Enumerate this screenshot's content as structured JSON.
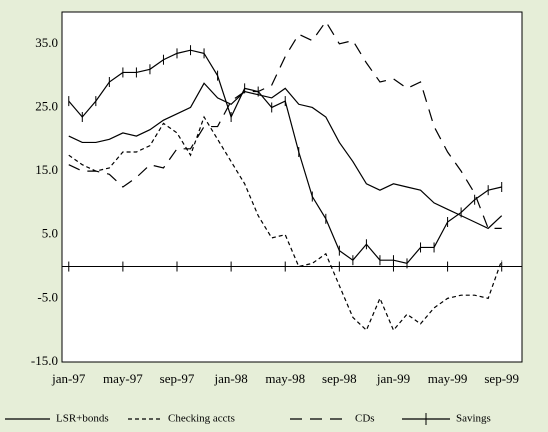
{
  "chart_data": {
    "type": "line",
    "x": [
      0,
      1,
      2,
      3,
      4,
      5,
      6,
      7,
      8,
      9,
      10,
      11,
      12,
      13,
      14,
      15,
      16,
      17,
      18,
      19,
      20,
      21,
      22,
      23,
      24,
      25,
      26,
      27,
      28,
      29,
      30,
      31,
      32
    ],
    "xlim": [
      -0.5,
      33.5
    ],
    "xticks": [
      {
        "value": 0,
        "label": "jan-97"
      },
      {
        "value": 4,
        "label": "may-97"
      },
      {
        "value": 8,
        "label": "sep-97"
      },
      {
        "value": 12,
        "label": "jan-98"
      },
      {
        "value": 16,
        "label": "may-98"
      },
      {
        "value": 20,
        "label": "sep-98"
      },
      {
        "value": 24,
        "label": "jan-99"
      },
      {
        "value": 28,
        "label": "may-99"
      },
      {
        "value": 32,
        "label": "sep-99"
      }
    ],
    "ylim": [
      -15,
      40
    ],
    "yticks": [
      {
        "value": 35,
        "label": "35.0"
      },
      {
        "value": 25,
        "label": "25.0"
      },
      {
        "value": 15,
        "label": "15.0"
      },
      {
        "value": 5,
        "label": "5.0"
      },
      {
        "value": -5,
        "label": "-5.0"
      },
      {
        "value": -15,
        "label": "-15.0"
      }
    ],
    "zero_line": true,
    "grid": false,
    "legend": "bottom",
    "series": [
      {
        "name": "LSR+bonds",
        "color": "#000000",
        "dash": "solid",
        "marker": "none",
        "values": [
          20.5,
          19.5,
          19.5,
          20,
          21,
          20.5,
          21.5,
          23,
          24,
          25,
          28.8,
          26.5,
          25.5,
          27.5,
          27,
          26.5,
          28,
          25.5,
          25,
          23.5,
          19.5,
          16.5,
          13,
          12,
          13,
          12.5,
          12,
          10,
          9,
          8,
          7,
          6,
          8
        ]
      },
      {
        "name": "Checking accts",
        "color": "#000000",
        "dash": "dotted",
        "marker": "none",
        "values": [
          17.5,
          16,
          15,
          15.5,
          18,
          18,
          19,
          22.5,
          21,
          17.5,
          23.5,
          20,
          16.5,
          13,
          8,
          4.5,
          5,
          0,
          0.5,
          2,
          -3,
          -8,
          -10,
          -5,
          -10,
          -7.5,
          -9,
          -6.5,
          -5,
          -4.5,
          -4.5,
          -5,
          1
        ]
      },
      {
        "name": "CDs",
        "color": "#000000",
        "dash": "dashed",
        "marker": "none",
        "values": [
          16,
          15,
          15,
          14.5,
          12.5,
          14,
          16,
          15.5,
          18.5,
          18.5,
          22,
          22,
          26,
          27.5,
          27.5,
          28.5,
          33,
          36.5,
          35.5,
          38.5,
          35,
          35.5,
          32,
          29,
          29.5,
          28,
          29,
          22,
          18,
          15,
          11.5,
          6,
          6
        ]
      },
      {
        "name": "Savings",
        "color": "#000000",
        "dash": "solid",
        "marker": "tick",
        "values": [
          26,
          23.5,
          26,
          29,
          30.5,
          30.5,
          31,
          32.5,
          33.5,
          34,
          33.5,
          30,
          23.5,
          28,
          27.5,
          25,
          26,
          18,
          11,
          7.5,
          2.5,
          1,
          3.5,
          1,
          1,
          0.5,
          3,
          3,
          7,
          8.5,
          10.5,
          12,
          12.5
        ]
      }
    ]
  }
}
